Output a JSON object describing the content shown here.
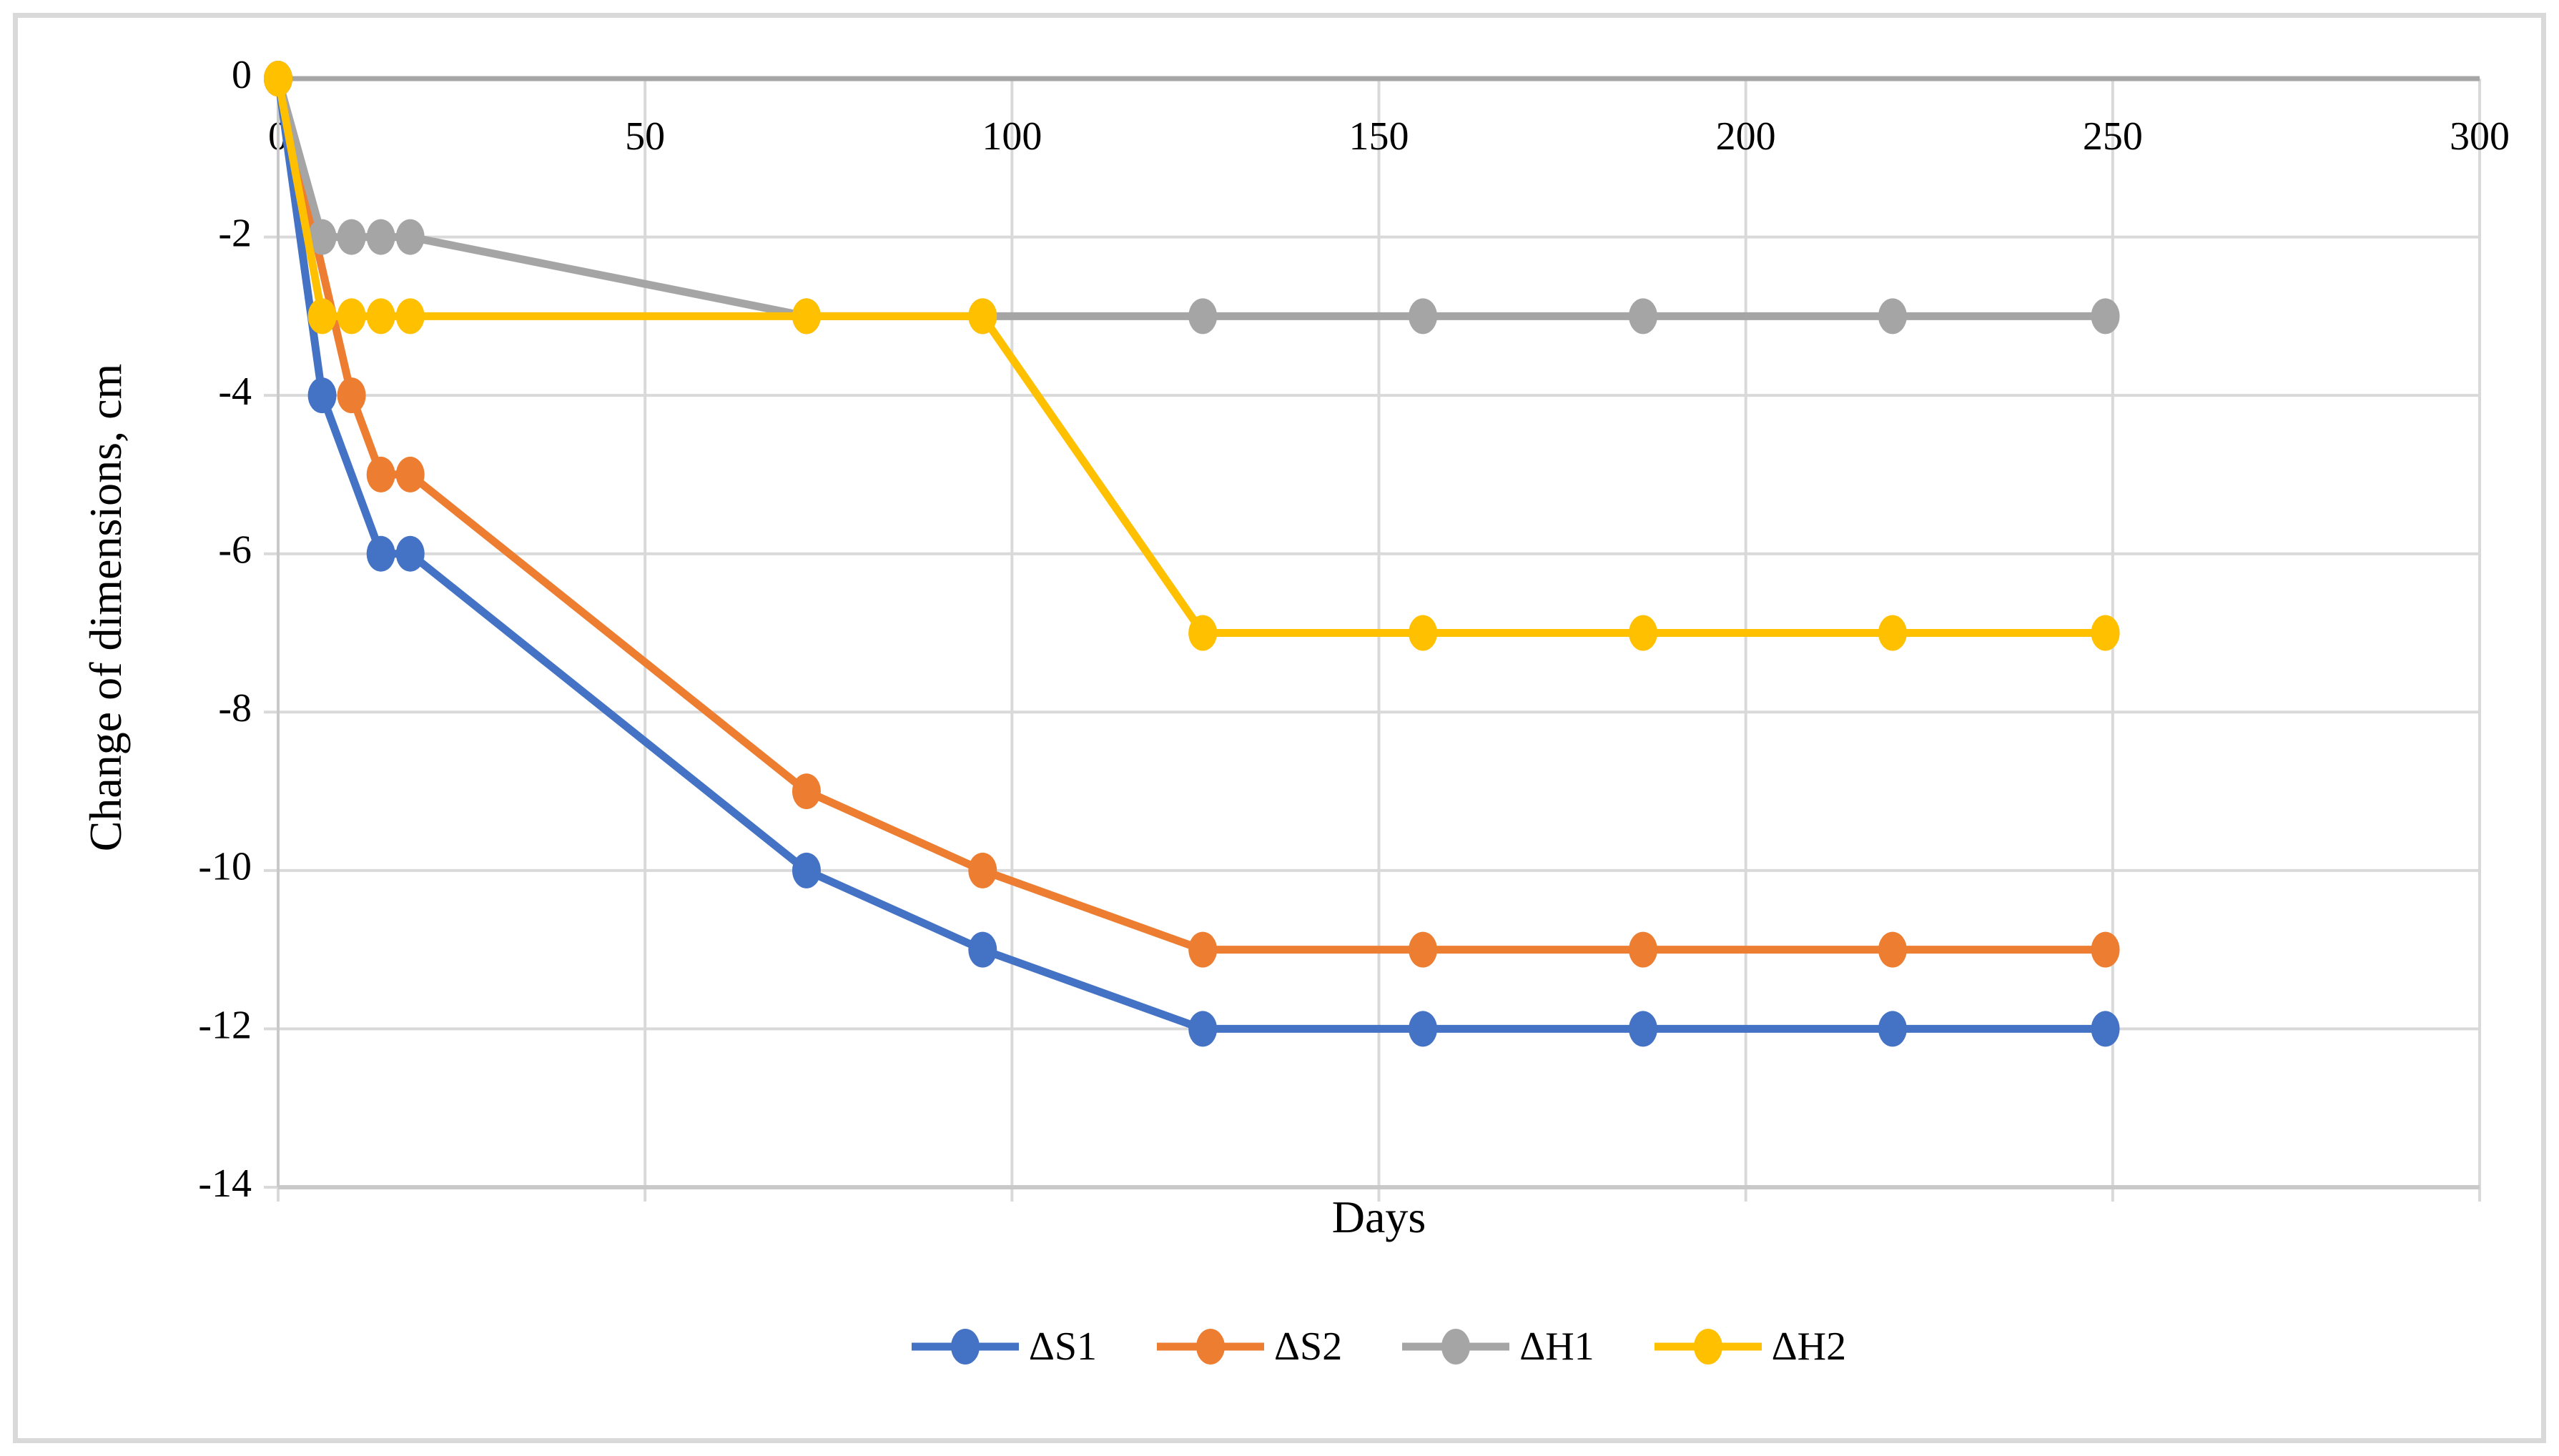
{
  "figure": {
    "background": "#ffffff",
    "frame_border_color": "#d9d9d9"
  },
  "chart_data": {
    "type": "line",
    "title": "",
    "xlabel": "Days",
    "ylabel": "Change of dimensions, cm",
    "xlim": [
      0,
      300
    ],
    "ylim": [
      -14,
      0
    ],
    "x_ticks": [
      0,
      50,
      100,
      150,
      200,
      250,
      300
    ],
    "y_ticks": [
      0,
      -2,
      -4,
      -6,
      -8,
      -10,
      -12,
      -14
    ],
    "grid": true,
    "grid_color": "#d9d9d9",
    "axis_color": "#a6a6a6",
    "minor_axis_color": "#c9c9c9",
    "text_color": "#000000",
    "legend_position": "bottom",
    "marker_shape": "circle",
    "series": [
      {
        "name": "ΔS1",
        "color": "#4472C4",
        "points": [
          [
            0,
            0
          ],
          [
            6,
            -4
          ],
          [
            14,
            -6
          ],
          [
            18,
            -6
          ],
          [
            72,
            -10
          ],
          [
            96,
            -11
          ],
          [
            126,
            -12
          ],
          [
            156,
            -12
          ],
          [
            186,
            -12
          ],
          [
            220,
            -12
          ],
          [
            249,
            -12
          ]
        ]
      },
      {
        "name": "ΔS2",
        "color": "#ED7D31",
        "points": [
          [
            0,
            0
          ],
          [
            10,
            -4
          ],
          [
            14,
            -5
          ],
          [
            18,
            -5
          ],
          [
            72,
            -9
          ],
          [
            96,
            -10
          ],
          [
            126,
            -11
          ],
          [
            156,
            -11
          ],
          [
            186,
            -11
          ],
          [
            220,
            -11
          ],
          [
            249,
            -11
          ]
        ]
      },
      {
        "name": "ΔH1",
        "color": "#A5A5A5",
        "points": [
          [
            0,
            0
          ],
          [
            6,
            -2
          ],
          [
            10,
            -2
          ],
          [
            14,
            -2
          ],
          [
            18,
            -2
          ],
          [
            72,
            -3
          ],
          [
            96,
            -3
          ],
          [
            126,
            -3
          ],
          [
            156,
            -3
          ],
          [
            186,
            -3
          ],
          [
            220,
            -3
          ],
          [
            249,
            -3
          ]
        ]
      },
      {
        "name": "ΔH2",
        "color": "#FFC000",
        "points": [
          [
            0,
            0
          ],
          [
            6,
            -3
          ],
          [
            10,
            -3
          ],
          [
            14,
            -3
          ],
          [
            18,
            -3
          ],
          [
            72,
            -3
          ],
          [
            96,
            -3
          ],
          [
            126,
            -7
          ],
          [
            156,
            -7
          ],
          [
            186,
            -7
          ],
          [
            220,
            -7
          ],
          [
            249,
            -7
          ]
        ]
      }
    ]
  }
}
